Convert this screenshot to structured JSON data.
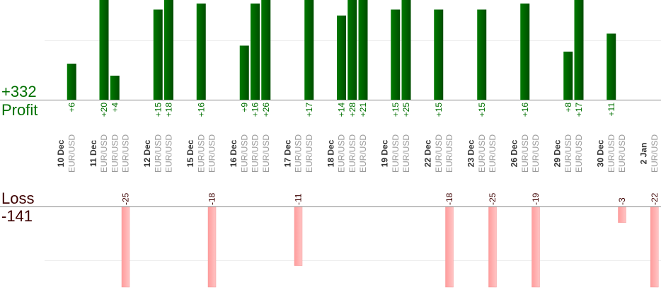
{
  "summary": {
    "profit_total": "+332",
    "profit_label": "Profit",
    "loss_label": "Loss",
    "loss_total": "-141"
  },
  "colors": {
    "profit": "#006400",
    "profit_text": "#007000",
    "loss": "#ffaaaa",
    "loss_text": "#3d0000"
  },
  "chart_data": {
    "type": "bar",
    "grid": true,
    "days": [
      {
        "date": "10 Dec",
        "trades": [
          {
            "symbol": "EUR/USD",
            "value": 6
          }
        ]
      },
      {
        "date": "11 Dec",
        "trades": [
          {
            "symbol": "EUR/USD",
            "value": 20
          },
          {
            "symbol": "EUR/USD",
            "value": 4
          },
          {
            "symbol": "EUR/USD",
            "value": -25
          }
        ]
      },
      {
        "date": "12 Dec",
        "trades": [
          {
            "symbol": "EUR/USD",
            "value": 15
          },
          {
            "symbol": "EUR/USD",
            "value": 18
          }
        ]
      },
      {
        "date": "15 Dec",
        "trades": [
          {
            "symbol": "EUR/USD",
            "value": 16
          },
          {
            "symbol": "EUR/USD",
            "value": -18
          }
        ]
      },
      {
        "date": "16 Dec",
        "trades": [
          {
            "symbol": "EUR/USD",
            "value": 9
          },
          {
            "symbol": "EUR/USD",
            "value": 16
          },
          {
            "symbol": "EUR/USD",
            "value": 26
          }
        ]
      },
      {
        "date": "17 Dec",
        "trades": [
          {
            "symbol": "EUR/USD",
            "value": -11
          },
          {
            "symbol": "EUR/USD",
            "value": 17
          }
        ]
      },
      {
        "date": "18 Dec",
        "trades": [
          {
            "symbol": "EUR/USD",
            "value": 14
          },
          {
            "symbol": "EUR/USD",
            "value": 28
          },
          {
            "symbol": "EUR/USD",
            "value": 21
          }
        ]
      },
      {
        "date": "19 Dec",
        "trades": [
          {
            "symbol": "EUR/USD",
            "value": 15
          },
          {
            "symbol": "EUR/USD",
            "value": 25
          }
        ]
      },
      {
        "date": "22 Dec",
        "trades": [
          {
            "symbol": "EUR/USD",
            "value": 15
          },
          {
            "symbol": "EUR/USD",
            "value": -18
          }
        ]
      },
      {
        "date": "23 Dec",
        "trades": [
          {
            "symbol": "EUR/USD",
            "value": 15
          },
          {
            "symbol": "EUR/USD",
            "value": -25
          }
        ]
      },
      {
        "date": "26 Dec",
        "trades": [
          {
            "symbol": "EUR/USD",
            "value": 16
          },
          {
            "symbol": "EUR/USD",
            "value": -19
          }
        ]
      },
      {
        "date": "29 Dec",
        "trades": [
          {
            "symbol": "EUR/USD",
            "value": 8
          },
          {
            "symbol": "EUR/USD",
            "value": 17
          }
        ]
      },
      {
        "date": "30 Dec",
        "trades": [
          {
            "symbol": "EUR/USD",
            "value": 11
          },
          {
            "symbol": "EUR/USD",
            "value": -3
          }
        ]
      },
      {
        "date": "2 Jan",
        "trades": [
          {
            "symbol": "EUR/USD",
            "value": -22
          }
        ]
      }
    ]
  }
}
